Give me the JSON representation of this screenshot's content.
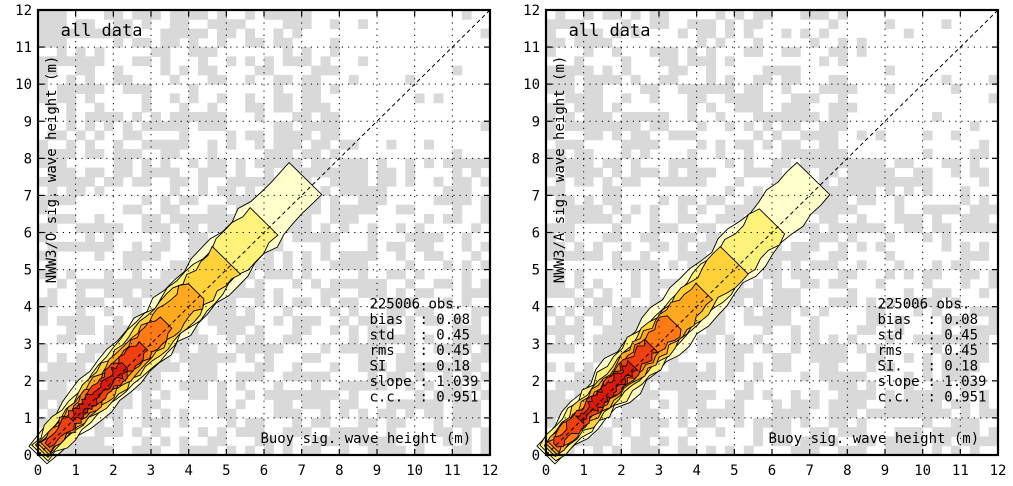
{
  "chart_data": [
    {
      "type": "heatmap",
      "panel_label": "all data",
      "xlabel": "Buoy sig. wave height (m)",
      "ylabel": "NWW3/O sig. wave height (m)",
      "xlim": [
        0,
        12
      ],
      "ylim": [
        0,
        12
      ],
      "x_ticks": [
        "0",
        "1",
        "2",
        "3",
        "4",
        "5",
        "6",
        "7",
        "8",
        "9",
        "10",
        "11",
        "12"
      ],
      "y_ticks": [
        "0",
        "1",
        "2",
        "3",
        "4",
        "5",
        "6",
        "7",
        "8",
        "9",
        "10",
        "11",
        "12"
      ],
      "grid": true,
      "reference_line": "1:1 dashed",
      "stats": {
        "obs": "225006 obs.",
        "rows": [
          {
            "name": "bias",
            "value": ": 0.08"
          },
          {
            "name": "std",
            "value": ": 0.45"
          },
          {
            "name": "rms",
            "value": ": 0.45"
          },
          {
            "name": "SI",
            "value": ": 0.18"
          },
          {
            "name": "slope",
            "value": ": 1.039"
          },
          {
            "name": "c.c.",
            "value": ": 0.951"
          }
        ]
      },
      "density_ridge": [
        {
          "x": 0.3,
          "y": 0.3
        },
        {
          "x": 1.0,
          "y": 1.1
        },
        {
          "x": 2.0,
          "y": 2.1
        },
        {
          "x": 3.0,
          "y": 3.2
        },
        {
          "x": 4.0,
          "y": 4.3
        },
        {
          "x": 5.0,
          "y": 5.3
        },
        {
          "x": 6.0,
          "y": 6.3
        },
        {
          "x": 6.6,
          "y": 7.0
        }
      ],
      "contour_colors": [
        "#ffffcc",
        "#fff27a",
        "#ffd23a",
        "#ffaa1e",
        "#ff7a14",
        "#f04010",
        "#d81c0c"
      ]
    },
    {
      "type": "heatmap",
      "panel_label": "all data",
      "xlabel": "Buoy sig. wave height (m)",
      "ylabel": "NWW3/A sig. wave height (m)",
      "xlim": [
        0,
        12
      ],
      "ylim": [
        0,
        12
      ],
      "x_ticks": [
        "0",
        "1",
        "2",
        "3",
        "4",
        "5",
        "6",
        "7",
        "8",
        "9",
        "10",
        "11",
        "12"
      ],
      "y_ticks": [
        "0",
        "1",
        "2",
        "3",
        "4",
        "5",
        "6",
        "7",
        "8",
        "9",
        "10",
        "11",
        "12"
      ],
      "grid": true,
      "reference_line": "1:1 dashed",
      "stats": {
        "obs": "225006 obs.",
        "rows": [
          {
            "name": "bias",
            "value": ": 0.08"
          },
          {
            "name": "std",
            "value": ": 0.45"
          },
          {
            "name": "rms",
            "value": ": 0.45"
          },
          {
            "name": "SI.",
            "value": ": 0.18"
          },
          {
            "name": "slope",
            "value": ": 1.039"
          },
          {
            "name": "c.c.",
            "value": ": 0.951"
          }
        ]
      },
      "density_ridge": [
        {
          "x": 0.3,
          "y": 0.3
        },
        {
          "x": 1.0,
          "y": 1.1
        },
        {
          "x": 2.0,
          "y": 2.1
        },
        {
          "x": 3.0,
          "y": 3.2
        },
        {
          "x": 4.0,
          "y": 4.3
        },
        {
          "x": 5.0,
          "y": 5.3
        },
        {
          "x": 6.0,
          "y": 6.3
        },
        {
          "x": 6.6,
          "y": 7.0
        }
      ],
      "contour_colors": [
        "#ffffcc",
        "#fff27a",
        "#ffd23a",
        "#ffaa1e",
        "#ff7a14",
        "#f04010",
        "#d81c0c"
      ]
    }
  ],
  "style": {
    "scatter_cell_color": "#d9d9d9",
    "frame_color": "#000000"
  }
}
